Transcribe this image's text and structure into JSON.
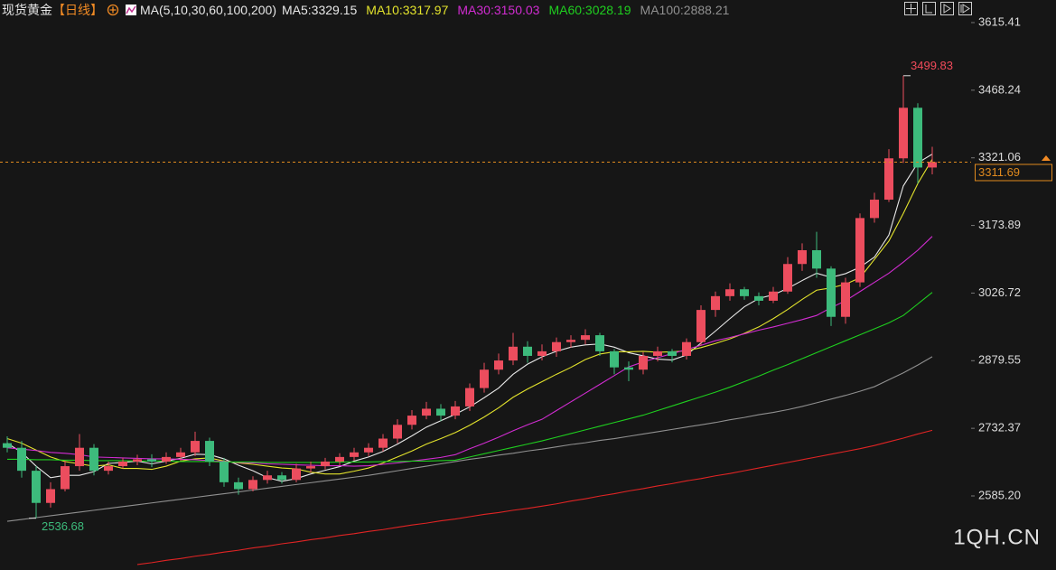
{
  "header": {
    "title": "现货黄金",
    "period": "【日线】",
    "ma_params": "MA(5,10,30,60,100,200)"
  },
  "chart_data": {
    "type": "candlestick",
    "watermark": "1QH.CN",
    "up_color": "#ec4d5e",
    "down_color": "#3dbb7c",
    "ylim": [
      2424,
      3664.56
    ],
    "yticks": [
      3615.41,
      3468.24,
      3321.06,
      3173.89,
      3026.72,
      2879.55,
      2732.37,
      {
        "value": 2585.2,
        "label": "2585.20"
      }
    ],
    "last_price": 3311.69,
    "max_label": 3499.83,
    "min_label": 2536.68,
    "open": [
      2700,
      2690,
      2640,
      2570,
      2600,
      2650,
      2690,
      2640,
      2650,
      2660,
      2665,
      2660,
      2670,
      2680,
      2705,
      2660,
      2615,
      2600,
      2620,
      2630,
      2620,
      2645,
      2650,
      2660,
      2670,
      2680,
      2690,
      2710,
      2740,
      2760,
      2775,
      2760,
      2780,
      2820,
      2860,
      2880,
      2910,
      2890,
      2900,
      2920,
      2925,
      2935,
      2900,
      2865,
      2860,
      2890,
      2900,
      2890,
      2920,
      2990,
      3020,
      3035,
      3020,
      3010,
      3030,
      3090,
      3120,
      3080,
      2975,
      3050,
      3190,
      3230,
      3320,
      3430,
      3300
    ],
    "high": [
      2715,
      2705,
      2650,
      2615,
      2662,
      2720,
      2698,
      2660,
      2668,
      2675,
      2676,
      2680,
      2690,
      2725,
      2712,
      2668,
      2625,
      2628,
      2640,
      2637,
      2655,
      2660,
      2668,
      2678,
      2690,
      2700,
      2720,
      2752,
      2772,
      2790,
      2785,
      2792,
      2830,
      2875,
      2895,
      2940,
      2922,
      2915,
      2930,
      2935,
      2948,
      2940,
      2905,
      2878,
      2898,
      2910,
      2905,
      2928,
      3000,
      3030,
      3048,
      3040,
      3028,
      3040,
      3105,
      3135,
      3160,
      3085,
      3060,
      3200,
      3245,
      3340,
      3499.83,
      3440,
      3345
    ],
    "low": [
      2680,
      2625,
      2536.68,
      2560,
      2595,
      2640,
      2630,
      2632,
      2645,
      2652,
      2648,
      2655,
      2662,
      2672,
      2650,
      2605,
      2588,
      2595,
      2612,
      2612,
      2615,
      2636,
      2643,
      2652,
      2662,
      2672,
      2682,
      2700,
      2730,
      2752,
      2748,
      2752,
      2770,
      2810,
      2850,
      2870,
      2875,
      2880,
      2888,
      2908,
      2915,
      2890,
      2850,
      2835,
      2850,
      2878,
      2876,
      2882,
      2912,
      2975,
      3010,
      3012,
      3000,
      3005,
      3025,
      3075,
      3060,
      2955,
      2960,
      3040,
      3180,
      3225,
      3310,
      3265,
      3285
    ],
    "close": [
      2690,
      2640,
      2570,
      2600,
      2650,
      2690,
      2640,
      2650,
      2660,
      2665,
      2660,
      2670,
      2680,
      2705,
      2660,
      2615,
      2600,
      2620,
      2630,
      2620,
      2645,
      2650,
      2660,
      2670,
      2680,
      2690,
      2710,
      2740,
      2760,
      2775,
      2760,
      2780,
      2820,
      2860,
      2880,
      2910,
      2890,
      2900,
      2920,
      2925,
      2935,
      2900,
      2865,
      2860,
      2890,
      2900,
      2890,
      2920,
      2990,
      3020,
      3035,
      3020,
      3010,
      3030,
      3090,
      3120,
      3080,
      2975,
      3050,
      3190,
      3230,
      3320,
      3430,
      3300,
      3311.69
    ],
    "series": [
      {
        "label": "MA5:3329.15",
        "color": "#e8e8e8",
        "values": [
          2700,
          2680,
          2650,
          2625,
          2630,
          2630,
          2638,
          2656,
          2658,
          2661,
          2655,
          2661,
          2667,
          2676,
          2675,
          2666,
          2652,
          2640,
          2625,
          2617,
          2623,
          2633,
          2641,
          2649,
          2661,
          2670,
          2682,
          2698,
          2716,
          2735,
          2749,
          2763,
          2779,
          2799,
          2820,
          2850,
          2872,
          2888,
          2900,
          2909,
          2914,
          2916,
          2909,
          2897,
          2890,
          2883,
          2881,
          2892,
          2918,
          2944,
          2971,
          2997,
          3015,
          3023,
          3037,
          3054,
          3070,
          3061,
          3069,
          3083,
          3105,
          3153,
          3260,
          3310,
          3329.15
        ]
      },
      {
        "label": "MA10:3317.97",
        "color": "#e3e32c",
        "values": [
          2710,
          2700,
          2685,
          2670,
          2660,
          2655,
          2650,
          2653,
          2645,
          2645,
          2643,
          2650,
          2661,
          2666,
          2668,
          2661,
          2657,
          2654,
          2650,
          2646,
          2644,
          2637,
          2633,
          2633,
          2639,
          2646,
          2657,
          2670,
          2683,
          2698,
          2710,
          2723,
          2739,
          2757,
          2777,
          2800,
          2818,
          2834,
          2850,
          2865,
          2882,
          2894,
          2899,
          2899,
          2900,
          2898,
          2899,
          2901,
          2908,
          2917,
          2927,
          2939,
          2953,
          2971,
          2991,
          3013,
          3033,
          3038,
          3046,
          3060,
          3100,
          3140,
          3200,
          3265,
          3317.97
        ]
      },
      {
        "label": "MA30:3150.03",
        "color": "#d12cd1",
        "values": [
          2690,
          2687,
          2684,
          2680,
          2678,
          2675,
          2670,
          2669,
          2668,
          2667,
          2666,
          2666,
          2665,
          2664,
          2662,
          2660,
          2658,
          2657,
          2655,
          2654,
          2653,
          2652,
          2651,
          2651,
          2650,
          2651,
          2654,
          2657,
          2661,
          2665,
          2669,
          2675,
          2688,
          2700,
          2713,
          2727,
          2740,
          2752,
          2771,
          2790,
          2809,
          2828,
          2847,
          2866,
          2877,
          2886,
          2895,
          2904,
          2913,
          2923,
          2930,
          2938,
          2946,
          2953,
          2961,
          2969,
          2978,
          2995,
          3010,
          3030,
          3050,
          3070,
          3094,
          3120,
          3150.03
        ]
      },
      {
        "label": "MA60:3028.19",
        "color": "#1fcf1f",
        "values": [
          2665,
          2665,
          2664,
          2664,
          2663,
          2663,
          2662,
          2662,
          2662,
          2661,
          2661,
          2661,
          2660,
          2660,
          2660,
          2659,
          2659,
          2659,
          2658,
          2658,
          2658,
          2658,
          2658,
          2659,
          2659,
          2659,
          2660,
          2660,
          2661,
          2661,
          2662,
          2663,
          2670,
          2677,
          2684,
          2691,
          2698,
          2705,
          2713,
          2721,
          2729,
          2737,
          2745,
          2753,
          2761,
          2771,
          2781,
          2791,
          2801,
          2811,
          2822,
          2834,
          2846,
          2859,
          2871,
          2884,
          2897,
          2910,
          2923,
          2936,
          2949,
          2962,
          2978,
          3003,
          3028.19
        ]
      },
      {
        "label": "MA100:2888.21",
        "color": "#909090",
        "values": [
          2530,
          2534,
          2538,
          2542,
          2546,
          2550,
          2554,
          2558,
          2562,
          2566,
          2570,
          2574,
          2578,
          2582,
          2586,
          2590,
          2594,
          2598,
          2602,
          2606,
          2610,
          2614,
          2618,
          2622,
          2626,
          2630,
          2635,
          2640,
          2645,
          2650,
          2655,
          2660,
          2665,
          2669,
          2674,
          2678,
          2683,
          2687,
          2692,
          2697,
          2701,
          2706,
          2710,
          2715,
          2720,
          2725,
          2730,
          2735,
          2740,
          2745,
          2751,
          2756,
          2762,
          2767,
          2773,
          2780,
          2788,
          2796,
          2804,
          2813,
          2823,
          2838,
          2853,
          2870,
          2888.21
        ]
      },
      {
        "color": "#e02424",
        "values": [
          null,
          null,
          null,
          null,
          null,
          null,
          null,
          null,
          null,
          2436,
          2440,
          2445,
          2449,
          2454,
          2458,
          2463,
          2467,
          2472,
          2476,
          2481,
          2485,
          2490,
          2494,
          2499,
          2503,
          2508,
          2512,
          2517,
          2522,
          2526,
          2531,
          2535,
          2540,
          2545,
          2549,
          2554,
          2558,
          2563,
          2568,
          2574,
          2579,
          2585,
          2590,
          2596,
          2601,
          2607,
          2612,
          2618,
          2623,
          2629,
          2634,
          2640,
          2646,
          2652,
          2658,
          2664,
          2670,
          2676,
          2682,
          2688,
          2695,
          2703,
          2711,
          2720,
          2728
        ]
      }
    ]
  }
}
